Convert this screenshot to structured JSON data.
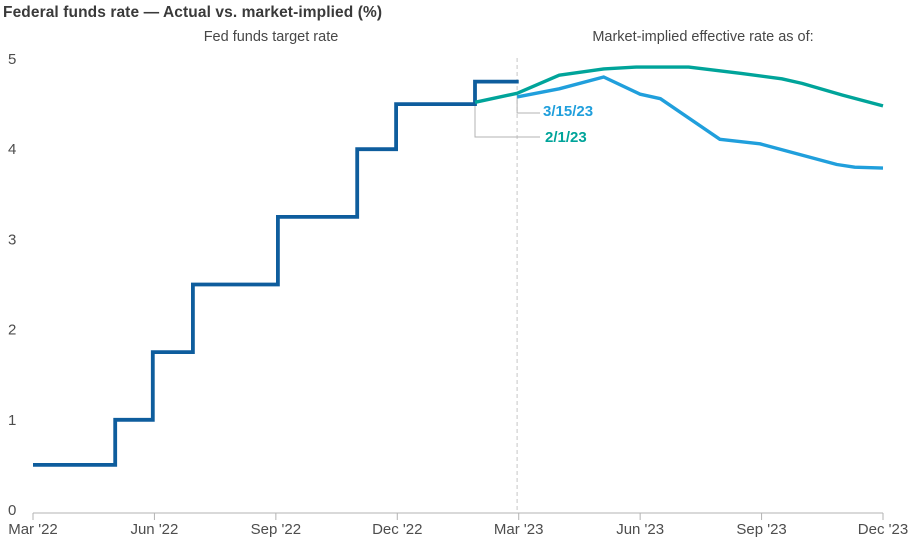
{
  "title": "Federal funds rate — Actual vs. market-implied (%)",
  "header": {
    "left_series_label": "Fed funds target rate",
    "right_series_label": "Market-implied effective rate as of:"
  },
  "annotations": [
    {
      "label": "3/15/23",
      "series": "3/15/23",
      "color": "#209fdc"
    },
    {
      "label": "2/1/23",
      "series": "2/1/23",
      "color": "#00a49a"
    }
  ],
  "colors": {
    "target_step": "#0e5d9d",
    "implied_3_15_23": "#209fdc",
    "implied_2_1_23": "#00a49a",
    "axis": "#b3b3b3",
    "divider": "#c6c6c6",
    "leader": "#b3b3b3",
    "text_dark": "#3a3a3a",
    "text_axis": "#4d4d4d"
  },
  "chart_data": {
    "type": "line",
    "title": "Federal funds rate — Actual vs. market-implied (%)",
    "x_axis": {
      "tick_labels": [
        "Mar '22",
        "Jun '22",
        "Sep '22",
        "Dec '22",
        "Mar '23",
        "Jun '23",
        "Sep '23",
        "Dec '23"
      ],
      "tick_months": [
        0,
        3,
        6,
        9,
        12,
        15,
        18,
        21
      ],
      "range_months": [
        0,
        21
      ]
    },
    "y_axis": {
      "ticks": [
        0,
        1,
        2,
        3,
        4,
        5
      ],
      "range": [
        0,
        5
      ],
      "unit": "%"
    },
    "grid": false,
    "divider": {
      "month": 11.96,
      "style": "dashed",
      "meaning": "boundary between actual and market-implied"
    },
    "series": [
      {
        "name": "Fed funds target rate",
        "role": "actual",
        "line_type": "step",
        "color": "#0e5d9d",
        "points": [
          [
            0,
            0.5
          ],
          [
            2.03,
            0.5
          ],
          [
            2.03,
            1.0
          ],
          [
            2.96,
            1.0
          ],
          [
            2.96,
            1.75
          ],
          [
            3.95,
            1.75
          ],
          [
            3.95,
            2.5
          ],
          [
            6.05,
            2.5
          ],
          [
            6.05,
            3.25
          ],
          [
            8.01,
            3.25
          ],
          [
            8.01,
            4.0
          ],
          [
            8.97,
            4.0
          ],
          [
            8.97,
            4.5
          ],
          [
            10.92,
            4.5
          ],
          [
            10.92,
            4.75
          ],
          [
            12.0,
            4.75
          ]
        ]
      },
      {
        "name": "2/1/23",
        "role": "market-implied effective rate",
        "line_type": "line",
        "color": "#00a49a",
        "points": [
          [
            10.92,
            4.52
          ],
          [
            11.96,
            4.62
          ],
          [
            13.0,
            4.82
          ],
          [
            14.1,
            4.89
          ],
          [
            14.9,
            4.91
          ],
          [
            16.2,
            4.91
          ],
          [
            17.5,
            4.84
          ],
          [
            18.5,
            4.78
          ],
          [
            19.0,
            4.73
          ],
          [
            20.0,
            4.6
          ],
          [
            21.0,
            4.48
          ]
        ]
      },
      {
        "name": "3/15/23",
        "role": "market-implied effective rate",
        "line_type": "line",
        "color": "#209fdc",
        "points": [
          [
            11.96,
            4.58
          ],
          [
            13.0,
            4.67
          ],
          [
            14.1,
            4.8
          ],
          [
            15.0,
            4.61
          ],
          [
            15.5,
            4.56
          ],
          [
            16.97,
            4.11
          ],
          [
            17.96,
            4.06
          ],
          [
            19.86,
            3.83
          ],
          [
            20.3,
            3.8
          ],
          [
            21.0,
            3.79
          ]
        ]
      }
    ]
  }
}
